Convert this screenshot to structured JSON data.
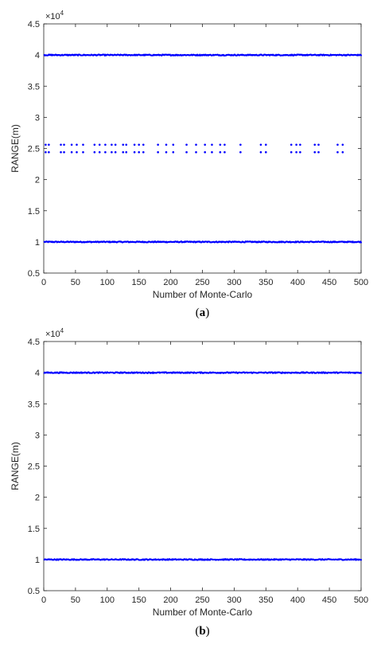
{
  "chart_data": [
    {
      "type": "scatter",
      "panel_label": "(a)",
      "panel_letter": "a",
      "xlabel": "Number of Monte-Carlo",
      "ylabel": "RANGE(m)",
      "exponent_label": "×10",
      "exponent_power": "4",
      "xlim": [
        0,
        500
      ],
      "ylim": [
        0.5,
        4.5
      ],
      "x_ticks": [
        0,
        50,
        100,
        150,
        200,
        250,
        300,
        350,
        400,
        450,
        500
      ],
      "x_tick_labels": [
        "0",
        "50",
        "100",
        "150",
        "200",
        "250",
        "300",
        "350",
        "400",
        "450",
        "500"
      ],
      "y_ticks": [
        0.5,
        1,
        1.5,
        2,
        2.5,
        3,
        3.5,
        4,
        4.5
      ],
      "y_tick_labels": [
        "0.5",
        "1",
        "1.5",
        "2",
        "2.5",
        "3",
        "3.5",
        "4",
        "4.5"
      ],
      "grid": false,
      "marker_color": "#0000ff",
      "series": [
        {
          "level": 1.0,
          "noise": 0.008,
          "x_range": [
            1,
            500
          ]
        },
        {
          "level": 4.0,
          "noise": 0.008,
          "x_range": [
            1,
            500
          ]
        },
        {
          "levels": [
            2.44,
            2.56
          ],
          "x": [
            3,
            8,
            27,
            32,
            44,
            52,
            62,
            80,
            88,
            97,
            107,
            113,
            125,
            130,
            143,
            150,
            157,
            180,
            193,
            204,
            225,
            240,
            254,
            265,
            278,
            285,
            310,
            342,
            350,
            390,
            398,
            404,
            427,
            433,
            463,
            471
          ]
        }
      ]
    },
    {
      "type": "scatter",
      "panel_label": "(b)",
      "panel_letter": "b",
      "xlabel": "Number of Monte-Carlo",
      "ylabel": "RANGE(m)",
      "exponent_label": "×10",
      "exponent_power": "4",
      "xlim": [
        0,
        500
      ],
      "ylim": [
        0.5,
        4.5
      ],
      "x_ticks": [
        0,
        50,
        100,
        150,
        200,
        250,
        300,
        350,
        400,
        450,
        500
      ],
      "x_tick_labels": [
        "0",
        "50",
        "100",
        "150",
        "200",
        "250",
        "300",
        "350",
        "400",
        "450",
        "500"
      ],
      "y_ticks": [
        0.5,
        1,
        1.5,
        2,
        2.5,
        3,
        3.5,
        4,
        4.5
      ],
      "y_tick_labels": [
        "0.5",
        "1",
        "1.5",
        "2",
        "2.5",
        "3",
        "3.5",
        "4",
        "4.5"
      ],
      "grid": false,
      "marker_color": "#0000ff",
      "series": [
        {
          "level": 1.0,
          "noise": 0.008,
          "x_range": [
            1,
            500
          ]
        },
        {
          "level": 4.0,
          "noise": 0.008,
          "x_range": [
            1,
            500
          ]
        }
      ]
    }
  ]
}
